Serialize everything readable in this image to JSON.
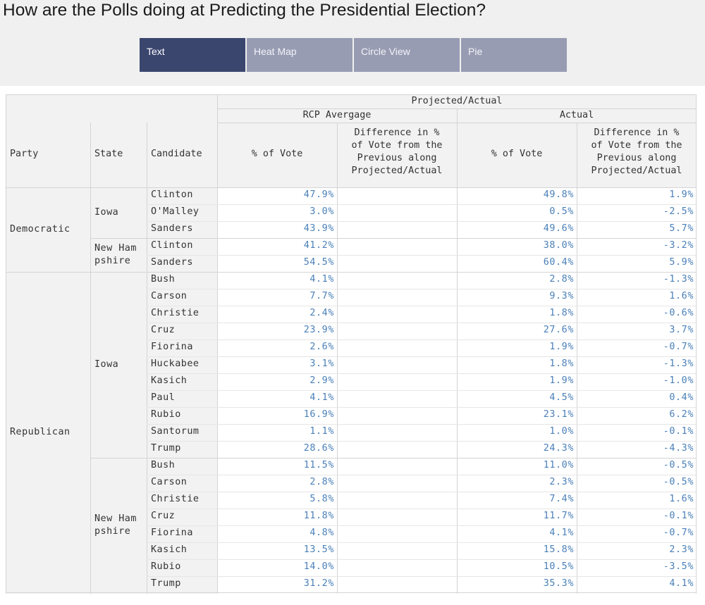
{
  "title": "How are the Polls doing at Predicting the Presidential Election?",
  "tabs": [
    {
      "label": "Text",
      "active": true
    },
    {
      "label": "Heat Map",
      "active": false
    },
    {
      "label": "Circle View",
      "active": false
    },
    {
      "label": "Pie",
      "active": false
    }
  ],
  "table": {
    "headers": {
      "party": "Party",
      "state": "State",
      "candidate": "Candidate",
      "group": "Projected/Actual",
      "rcp": "RCP Avergage",
      "actual": "Actual",
      "pct_vote": "% of Vote",
      "diff_line1": "Difference in %",
      "diff_line2": "of Vote from the",
      "diff_line3": "Previous along",
      "diff_line4": "Projected/Actual"
    },
    "parties": [
      {
        "name": "Democratic",
        "states": [
          {
            "name_line1": "Iowa",
            "name_line2": "",
            "rows": [
              {
                "candidate": "Clinton",
                "rcp_pct": "47.9%",
                "rcp_diff": "",
                "actual_pct": "49.8%",
                "actual_diff": "1.9%"
              },
              {
                "candidate": "O'Malley",
                "rcp_pct": "3.0%",
                "rcp_diff": "",
                "actual_pct": "0.5%",
                "actual_diff": "-2.5%"
              },
              {
                "candidate": "Sanders",
                "rcp_pct": "43.9%",
                "rcp_diff": "",
                "actual_pct": "49.6%",
                "actual_diff": "5.7%"
              }
            ]
          },
          {
            "name_line1": "New Ham",
            "name_line2": "pshire",
            "rows": [
              {
                "candidate": "Clinton",
                "rcp_pct": "41.2%",
                "rcp_diff": "",
                "actual_pct": "38.0%",
                "actual_diff": "-3.2%"
              },
              {
                "candidate": "Sanders",
                "rcp_pct": "54.5%",
                "rcp_diff": "",
                "actual_pct": "60.4%",
                "actual_diff": "5.9%"
              }
            ]
          }
        ]
      },
      {
        "name": "Republican",
        "states": [
          {
            "name_line1": "Iowa",
            "name_line2": "",
            "rows": [
              {
                "candidate": "Bush",
                "rcp_pct": "4.1%",
                "rcp_diff": "",
                "actual_pct": "2.8%",
                "actual_diff": "-1.3%"
              },
              {
                "candidate": "Carson",
                "rcp_pct": "7.7%",
                "rcp_diff": "",
                "actual_pct": "9.3%",
                "actual_diff": "1.6%"
              },
              {
                "candidate": "Christie",
                "rcp_pct": "2.4%",
                "rcp_diff": "",
                "actual_pct": "1.8%",
                "actual_diff": "-0.6%"
              },
              {
                "candidate": "Cruz",
                "rcp_pct": "23.9%",
                "rcp_diff": "",
                "actual_pct": "27.6%",
                "actual_diff": "3.7%"
              },
              {
                "candidate": "Fiorina",
                "rcp_pct": "2.6%",
                "rcp_diff": "",
                "actual_pct": "1.9%",
                "actual_diff": "-0.7%"
              },
              {
                "candidate": "Huckabee",
                "rcp_pct": "3.1%",
                "rcp_diff": "",
                "actual_pct": "1.8%",
                "actual_diff": "-1.3%"
              },
              {
                "candidate": "Kasich",
                "rcp_pct": "2.9%",
                "rcp_diff": "",
                "actual_pct": "1.9%",
                "actual_diff": "-1.0%"
              },
              {
                "candidate": "Paul",
                "rcp_pct": "4.1%",
                "rcp_diff": "",
                "actual_pct": "4.5%",
                "actual_diff": "0.4%"
              },
              {
                "candidate": "Rubio",
                "rcp_pct": "16.9%",
                "rcp_diff": "",
                "actual_pct": "23.1%",
                "actual_diff": "6.2%"
              },
              {
                "candidate": "Santorum",
                "rcp_pct": "1.1%",
                "rcp_diff": "",
                "actual_pct": "1.0%",
                "actual_diff": "-0.1%"
              },
              {
                "candidate": "Trump",
                "rcp_pct": "28.6%",
                "rcp_diff": "",
                "actual_pct": "24.3%",
                "actual_diff": "-4.3%"
              }
            ]
          },
          {
            "name_line1": "New Ham",
            "name_line2": "pshire",
            "rows": [
              {
                "candidate": "Bush",
                "rcp_pct": "11.5%",
                "rcp_diff": "",
                "actual_pct": "11.0%",
                "actual_diff": "-0.5%"
              },
              {
                "candidate": "Carson",
                "rcp_pct": "2.8%",
                "rcp_diff": "",
                "actual_pct": "2.3%",
                "actual_diff": "-0.5%"
              },
              {
                "candidate": "Christie",
                "rcp_pct": "5.8%",
                "rcp_diff": "",
                "actual_pct": "7.4%",
                "actual_diff": "1.6%"
              },
              {
                "candidate": "Cruz",
                "rcp_pct": "11.8%",
                "rcp_diff": "",
                "actual_pct": "11.7%",
                "actual_diff": "-0.1%"
              },
              {
                "candidate": "Fiorina",
                "rcp_pct": "4.8%",
                "rcp_diff": "",
                "actual_pct": "4.1%",
                "actual_diff": "-0.7%"
              },
              {
                "candidate": "Kasich",
                "rcp_pct": "13.5%",
                "rcp_diff": "",
                "actual_pct": "15.8%",
                "actual_diff": "2.3%"
              },
              {
                "candidate": "Rubio",
                "rcp_pct": "14.0%",
                "rcp_diff": "",
                "actual_pct": "10.5%",
                "actual_diff": "-3.5%"
              },
              {
                "candidate": "Trump",
                "rcp_pct": "31.2%",
                "rcp_diff": "",
                "actual_pct": "35.3%",
                "actual_diff": "4.1%"
              }
            ]
          }
        ]
      }
    ]
  }
}
